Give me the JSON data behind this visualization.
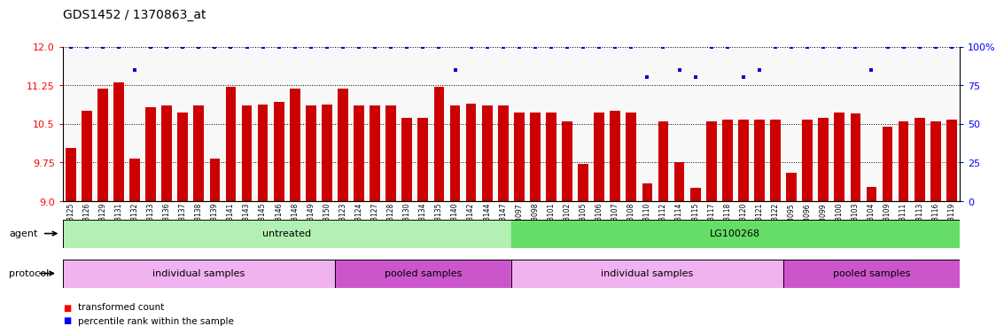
{
  "title": "GDS1452 / 1370863_at",
  "samples": [
    "GSM43125",
    "GSM43126",
    "GSM43129",
    "GSM43131",
    "GSM43132",
    "GSM43133",
    "GSM43136",
    "GSM43137",
    "GSM43138",
    "GSM43139",
    "GSM43141",
    "GSM43143",
    "GSM43145",
    "GSM43146",
    "GSM43148",
    "GSM43149",
    "GSM43150",
    "GSM43123",
    "GSM43124",
    "GSM43127",
    "GSM43128",
    "GSM43130",
    "GSM43134",
    "GSM43135",
    "GSM43140",
    "GSM43142",
    "GSM43144",
    "GSM43147",
    "GSM43097",
    "GSM43098",
    "GSM43101",
    "GSM43102",
    "GSM43105",
    "GSM43106",
    "GSM43107",
    "GSM43108",
    "GSM43110",
    "GSM43112",
    "GSM43114",
    "GSM43115",
    "GSM43117",
    "GSM43118",
    "GSM43120",
    "GSM43121",
    "GSM43122",
    "GSM43095",
    "GSM43096",
    "GSM43099",
    "GSM43100",
    "GSM43103",
    "GSM43104",
    "GSM43109",
    "GSM43111",
    "GSM43113",
    "GSM43116",
    "GSM43119"
  ],
  "bar_values": [
    10.03,
    10.75,
    11.18,
    11.3,
    9.83,
    10.82,
    10.85,
    10.72,
    10.85,
    9.83,
    11.22,
    10.85,
    10.88,
    10.93,
    11.18,
    10.85,
    10.88,
    11.18,
    10.85,
    10.85,
    10.85,
    10.62,
    10.62,
    11.22,
    10.85,
    10.9,
    10.85,
    10.85,
    10.72,
    10.72,
    10.72,
    10.55,
    9.72,
    10.72,
    10.75,
    10.72,
    9.35,
    10.55,
    9.75,
    9.25,
    10.55,
    10.58,
    10.58,
    10.58,
    10.58,
    9.55,
    10.58,
    10.62,
    10.72,
    10.7,
    9.28,
    10.45,
    10.55,
    10.62,
    10.55,
    10.58
  ],
  "percentile_values_raw": [
    100,
    100,
    100,
    100,
    85,
    100,
    100,
    100,
    100,
    100,
    100,
    100,
    100,
    100,
    100,
    100,
    100,
    100,
    100,
    100,
    100,
    100,
    100,
    100,
    85,
    100,
    100,
    100,
    100,
    100,
    100,
    100,
    100,
    100,
    100,
    100,
    80,
    100,
    85,
    80,
    100,
    100,
    80,
    85,
    100,
    100,
    100,
    100,
    100,
    100,
    85,
    100,
    100,
    100,
    100,
    100
  ],
  "ymin": 9.0,
  "ymax": 12.0,
  "yticks_left": [
    9.0,
    9.75,
    10.5,
    11.25,
    12.0
  ],
  "yticks_right": [
    0,
    25,
    50,
    75,
    100
  ],
  "bar_color": "#cc0000",
  "dot_color": "#0000cc",
  "bar_bottom": 9.0,
  "agent_groups": [
    {
      "label": "untreated",
      "start": 0,
      "end": 28,
      "color": "#b3f0b3"
    },
    {
      "label": "LG100268",
      "start": 28,
      "end": 56,
      "color": "#66dd66"
    }
  ],
  "protocol_groups": [
    {
      "label": "individual samples",
      "start": 0,
      "end": 17,
      "color": "#f0b3f0"
    },
    {
      "label": "pooled samples",
      "start": 17,
      "end": 28,
      "color": "#cc55cc"
    },
    {
      "label": "individual samples",
      "start": 28,
      "end": 45,
      "color": "#f0b3f0"
    },
    {
      "label": "pooled samples",
      "start": 45,
      "end": 56,
      "color": "#cc55cc"
    }
  ]
}
